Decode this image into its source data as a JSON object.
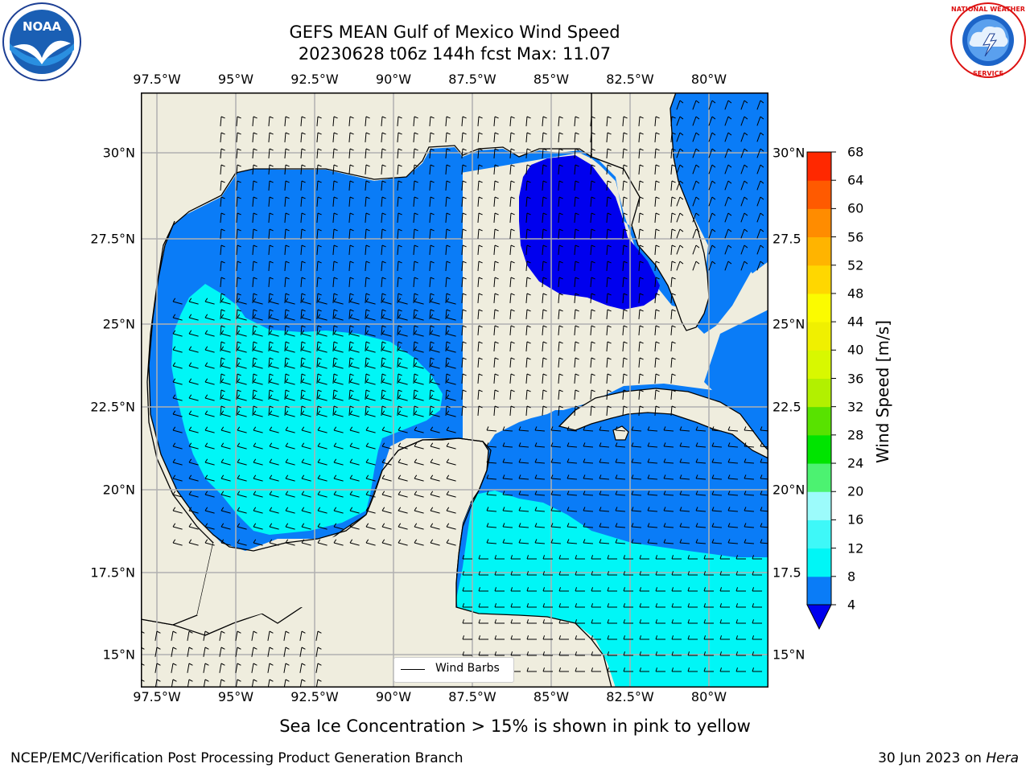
{
  "title": {
    "line1": "GEFS MEAN Gulf of Mexico Wind Speed",
    "line2": "20230628 t06z 144h fcst   Max: 11.07"
  },
  "axes": {
    "lon_labels": [
      "97.5°W",
      "95°W",
      "92.5°W",
      "90°W",
      "87.5°W",
      "85°W",
      "82.5°W",
      "80°W"
    ],
    "lat_labels_left": [
      "30°N",
      "27.5°N",
      "25°N",
      "22.5°N",
      "20°N",
      "17.5°N",
      "15°N"
    ],
    "lat_labels_right": [
      "30°N",
      "27.5",
      "25°N",
      "22.5",
      "20°N",
      "17.5",
      "15°N"
    ]
  },
  "legend": {
    "label": "Wind Barbs"
  },
  "colorbar": {
    "label": "Wind Speed [m/s]",
    "ticks": [
      "4",
      "8",
      "12",
      "16",
      "20",
      "24",
      "28",
      "32",
      "36",
      "40",
      "44",
      "48",
      "52",
      "56",
      "60",
      "64",
      "68"
    ],
    "colors": [
      "#0a7cf7",
      "#00f6f6",
      "#3ef8f8",
      "#9cfbfb",
      "#4cf271",
      "#00e400",
      "#58e200",
      "#b2f000",
      "#d8f800",
      "#f0f000",
      "#fbfb00",
      "#ffd700",
      "#ffb400",
      "#ff8c00",
      "#ff5a00",
      "#ff2800",
      "#ff0000"
    ],
    "under_color": "#0000ee"
  },
  "field_colors": {
    "land": "#efedde",
    "speed_4_8": "#0a7cf7",
    "speed_8_12": "#00f6f6",
    "speed_under_4": "#0000ee"
  },
  "note": "Sea Ice Concentration > 15% is shown in pink to yellow",
  "footer": {
    "left": "NCEP/EMC/Verification Post Processing Product Generation Branch",
    "right_date": "30 Jun 2023 on ",
    "right_machine": "Hera"
  },
  "logos": {
    "left": "NOAA",
    "right": "NATIONAL WEATHER SERVICE"
  }
}
